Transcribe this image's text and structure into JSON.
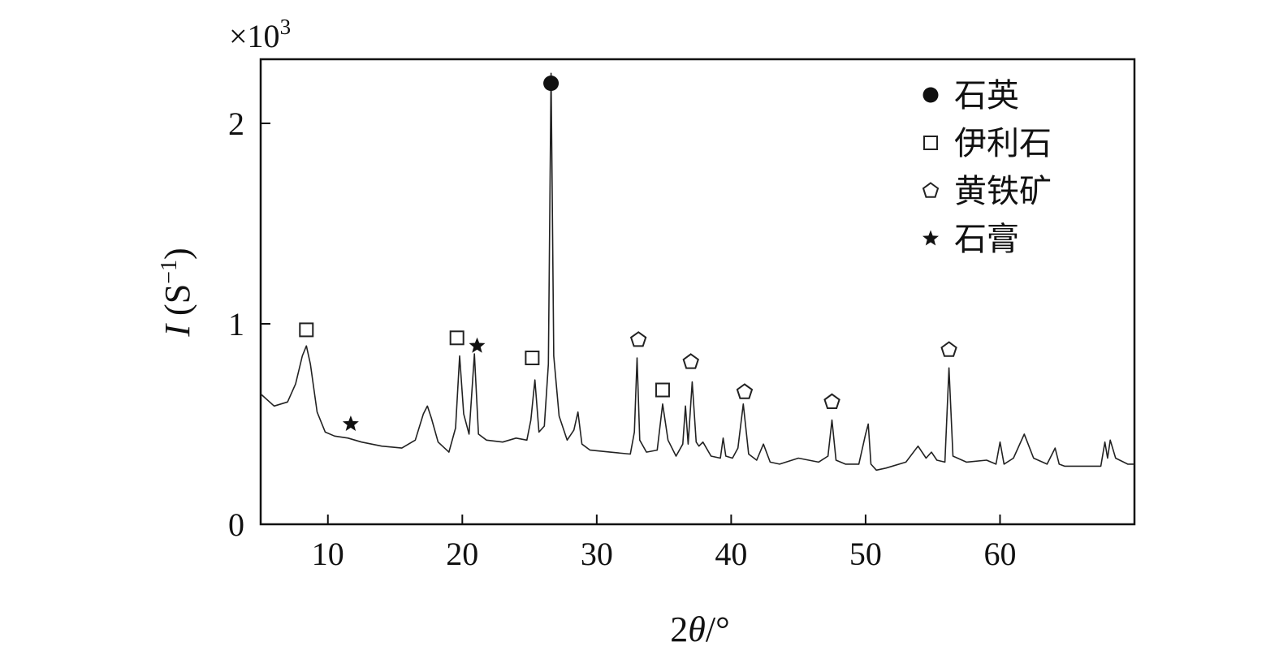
{
  "chart_data": {
    "type": "line",
    "title": "",
    "scale_note": {
      "prefix": "×10",
      "exponent": "3"
    },
    "xlabel": {
      "prefix": "2",
      "symbol": "θ",
      "suffix": "/°"
    },
    "ylabel": {
      "symbol": "I",
      "unit_open": " (S",
      "unit_exp": "−1",
      "unit_close": ")"
    },
    "xlim": [
      5,
      70
    ],
    "ylim": [
      0,
      2.3
    ],
    "xticks": [
      10,
      20,
      30,
      40,
      50,
      60
    ],
    "yticks": [
      0,
      1,
      2
    ],
    "grid": false,
    "legend_position": "top-right",
    "legend": [
      {
        "key": "quartz",
        "label": "石英",
        "marker": "filled-circle"
      },
      {
        "key": "illite",
        "label": "伊利石",
        "marker": "open-square"
      },
      {
        "key": "pyrite",
        "label": "黄铁矿",
        "marker": "open-pentagon"
      },
      {
        "key": "gypsum",
        "label": "石膏",
        "marker": "filled-star"
      }
    ],
    "series": [
      {
        "x": [
          5,
          6,
          7,
          7.6,
          8.1,
          8.4,
          8.7,
          9.2,
          9.8,
          10.5,
          11.5,
          12.5,
          14,
          15.5,
          16.5,
          17.1,
          17.4,
          17.7,
          18.2,
          19.0,
          19.5,
          19.8,
          20.1,
          20.5,
          20.9,
          21.2,
          21.8,
          23,
          24,
          24.8,
          25.1,
          25.4,
          25.7,
          26.1,
          26.4,
          26.6,
          26.8,
          27.2,
          27.8,
          28.3,
          28.6,
          28.9,
          29.5,
          31,
          32.5,
          32.8,
          33.0,
          33.2,
          33.7,
          34.5,
          34.9,
          35.3,
          35.9,
          36.4,
          36.6,
          36.8,
          37.1,
          37.4,
          37.6,
          37.9,
          38.5,
          39.2,
          39.4,
          39.6,
          40.1,
          40.5,
          40.9,
          41.3,
          41.9,
          42.4,
          42.9,
          43.6,
          45,
          46.5,
          47.2,
          47.5,
          47.8,
          48.5,
          49.5,
          50.0,
          50.2,
          50.4,
          50.8,
          51.5,
          53,
          53.9,
          54.5,
          54.9,
          55.3,
          55.9,
          56.2,
          56.5,
          57.5,
          59,
          59.7,
          60.0,
          60.3,
          61,
          61.8,
          62.5,
          63.5,
          64.1,
          64.4,
          64.8,
          66,
          67.5,
          67.8,
          68.0,
          68.2,
          68.6,
          69.5,
          70
        ],
        "values": [
          0.65,
          0.59,
          0.61,
          0.7,
          0.84,
          0.89,
          0.8,
          0.56,
          0.46,
          0.44,
          0.43,
          0.41,
          0.39,
          0.38,
          0.42,
          0.55,
          0.59,
          0.53,
          0.41,
          0.36,
          0.48,
          0.84,
          0.55,
          0.45,
          0.85,
          0.45,
          0.42,
          0.41,
          0.43,
          0.42,
          0.52,
          0.72,
          0.46,
          0.49,
          0.8,
          2.25,
          0.84,
          0.54,
          0.42,
          0.47,
          0.56,
          0.4,
          0.37,
          0.36,
          0.35,
          0.46,
          0.83,
          0.42,
          0.36,
          0.37,
          0.6,
          0.42,
          0.34,
          0.4,
          0.59,
          0.4,
          0.71,
          0.41,
          0.39,
          0.41,
          0.34,
          0.33,
          0.43,
          0.34,
          0.33,
          0.38,
          0.6,
          0.35,
          0.32,
          0.4,
          0.31,
          0.3,
          0.33,
          0.31,
          0.34,
          0.52,
          0.32,
          0.3,
          0.3,
          0.45,
          0.5,
          0.3,
          0.27,
          0.28,
          0.31,
          0.39,
          0.33,
          0.36,
          0.32,
          0.31,
          0.78,
          0.34,
          0.31,
          0.32,
          0.3,
          0.41,
          0.3,
          0.33,
          0.45,
          0.33,
          0.3,
          0.38,
          0.3,
          0.29,
          0.29,
          0.29,
          0.41,
          0.33,
          0.42,
          0.33,
          0.3,
          0.3
        ]
      }
    ],
    "annotations": [
      {
        "mineral": "illite",
        "x": 8.4,
        "y": 0.97
      },
      {
        "mineral": "gypsum",
        "x": 11.7,
        "y": 0.5
      },
      {
        "mineral": "illite",
        "x": 19.6,
        "y": 0.93
      },
      {
        "mineral": "gypsum",
        "x": 21.1,
        "y": 0.89
      },
      {
        "mineral": "illite",
        "x": 25.2,
        "y": 0.83
      },
      {
        "mineral": "quartz",
        "x": 26.6,
        "y": 2.2
      },
      {
        "mineral": "pyrite",
        "x": 33.1,
        "y": 0.92
      },
      {
        "mineral": "illite",
        "x": 34.9,
        "y": 0.67
      },
      {
        "mineral": "pyrite",
        "x": 37.0,
        "y": 0.81
      },
      {
        "mineral": "pyrite",
        "x": 41.0,
        "y": 0.66
      },
      {
        "mineral": "pyrite",
        "x": 47.5,
        "y": 0.61
      },
      {
        "mineral": "pyrite",
        "x": 56.2,
        "y": 0.87
      }
    ]
  }
}
